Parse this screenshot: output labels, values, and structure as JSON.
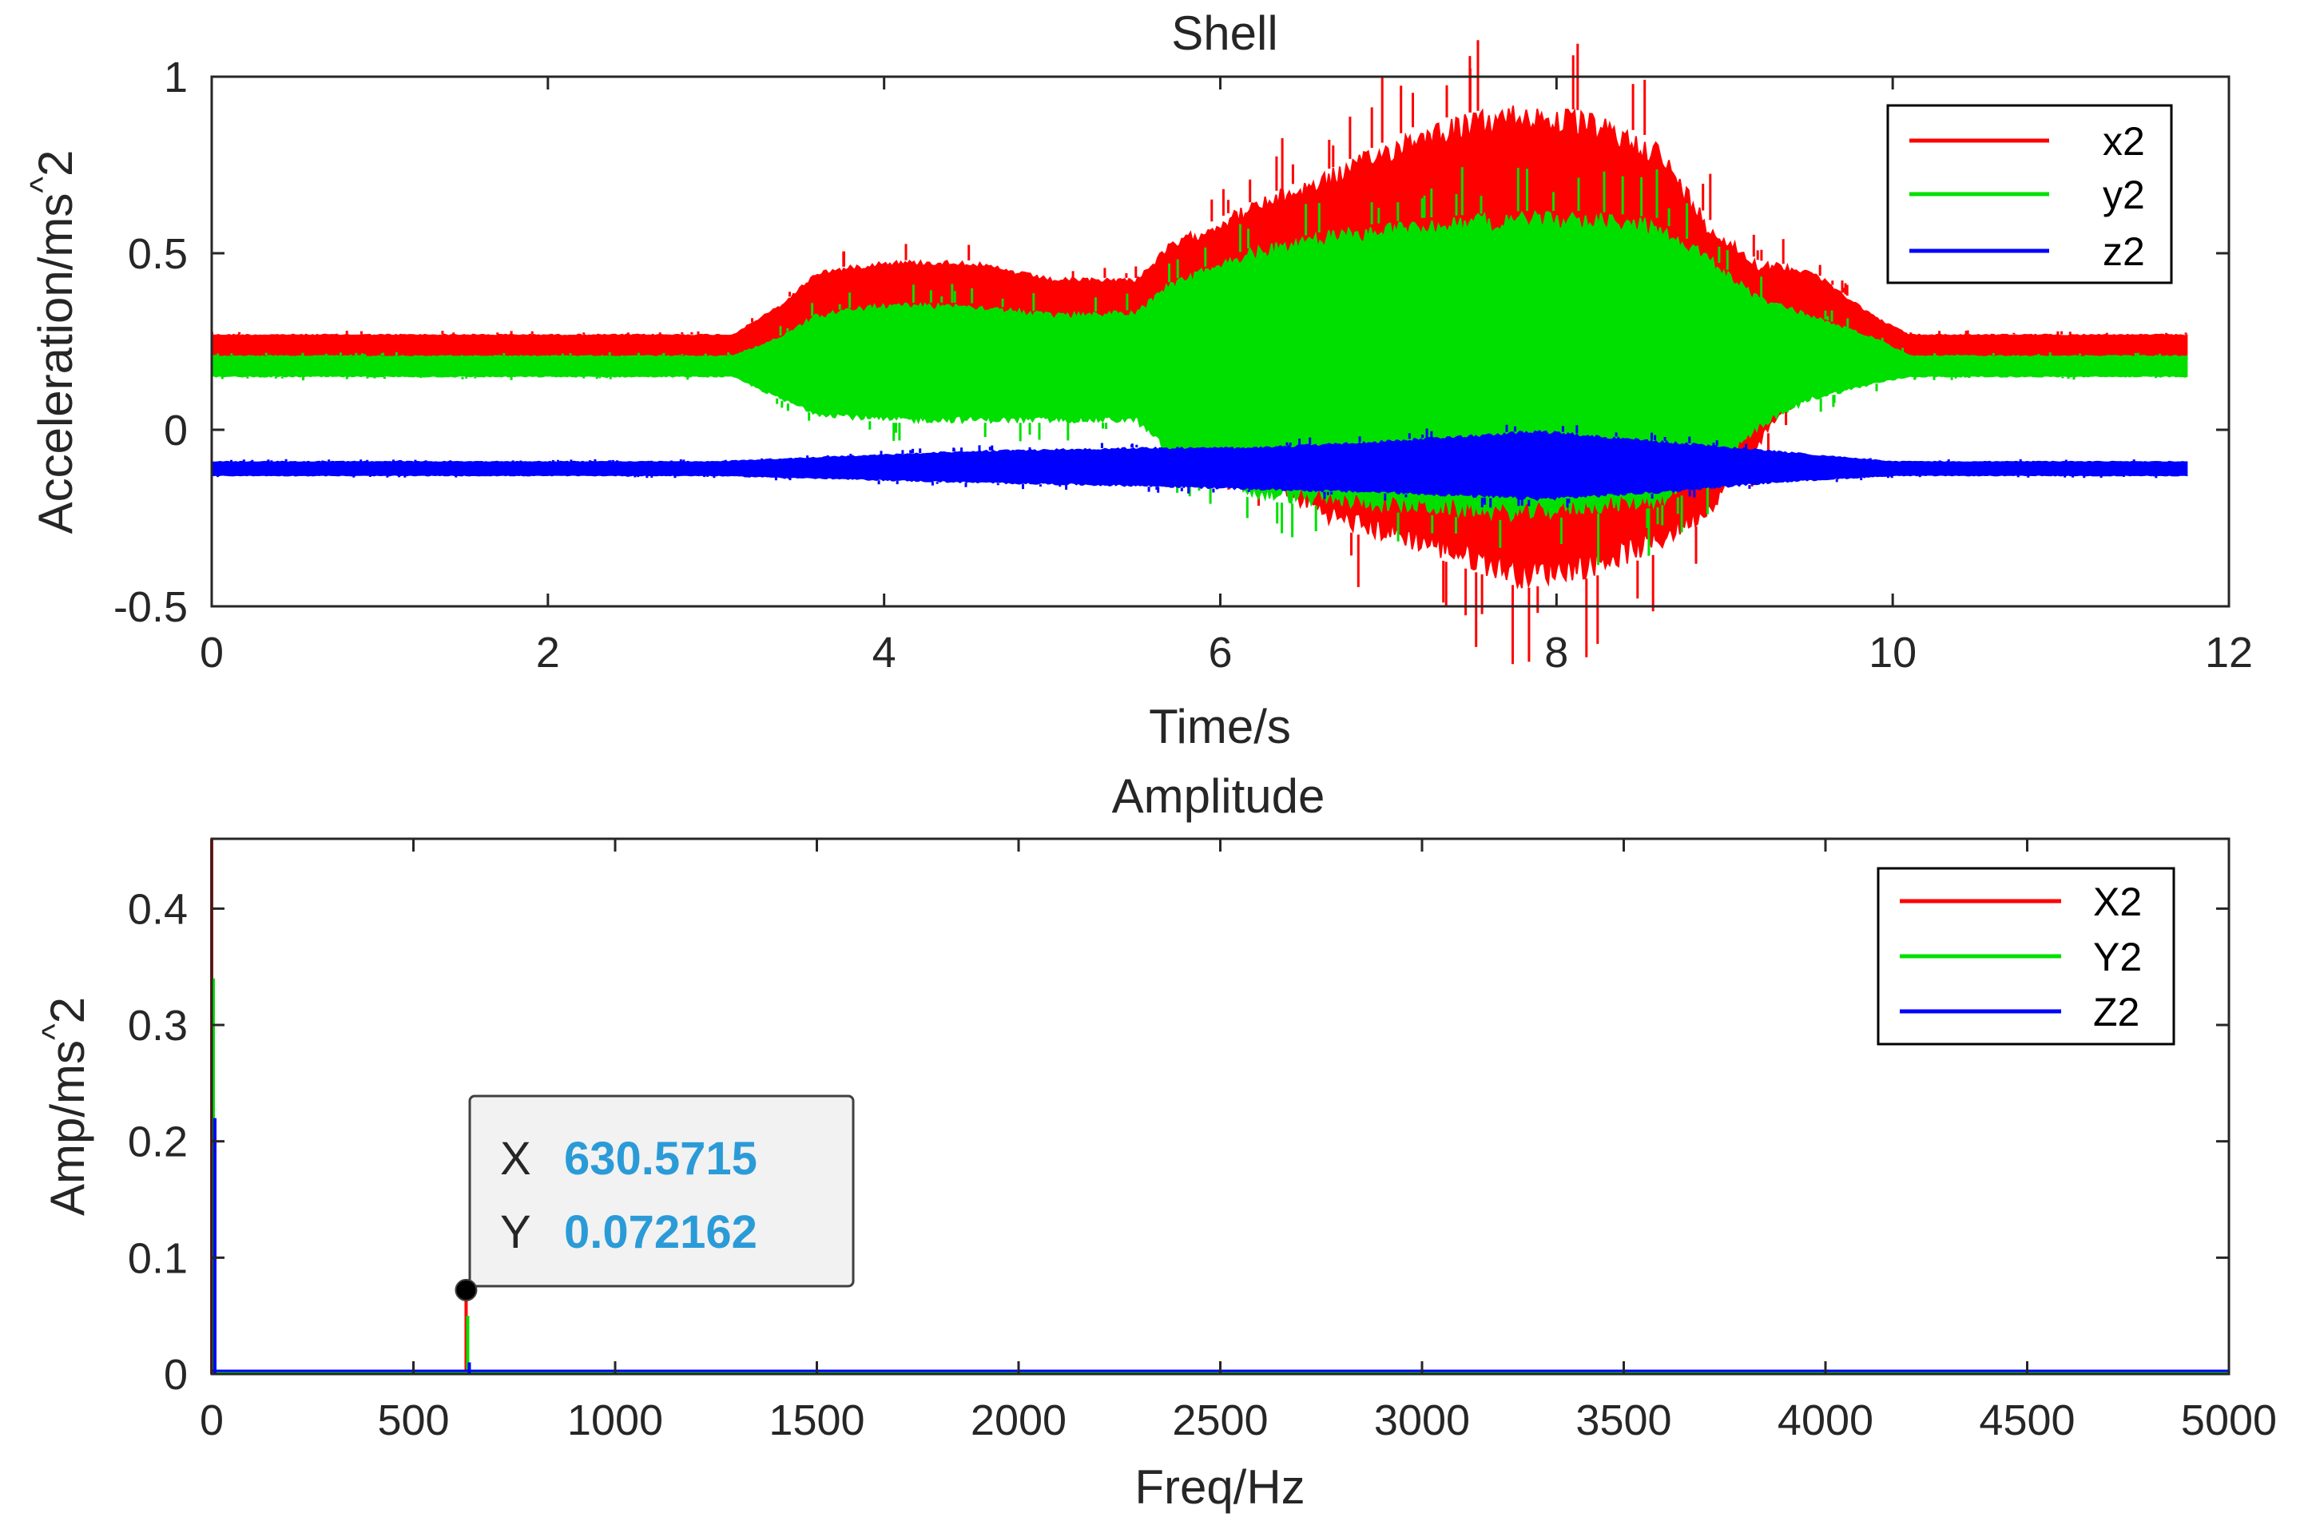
{
  "colors": {
    "x": "#ff0000",
    "y": "#00e000",
    "z": "#0000ff",
    "axis": "#262626",
    "datatip_value": "#2b9bd8"
  },
  "chart_data": [
    {
      "type": "line",
      "title": "Shell",
      "xlabel": "Time/s",
      "ylabel": "Acceleration/ms^2",
      "xlim": [
        0,
        12
      ],
      "ylim": [
        -0.5,
        1
      ],
      "xticks": [
        0,
        2,
        4,
        6,
        8,
        10,
        12
      ],
      "yticks": [
        -0.5,
        0,
        0.5,
        1
      ],
      "xtick_labels": [
        "0",
        "2",
        "4",
        "6",
        "8",
        "10",
        "12"
      ],
      "ytick_labels": [
        "-0.5",
        "0",
        "0.5",
        "1"
      ],
      "legend_position": "top-right",
      "series": [
        {
          "name": "x2",
          "color": "#ff0000",
          "envelope": {
            "t": [
              0,
              1,
              2,
              3.1,
              3.4,
              3.6,
              4.0,
              4.5,
              5.0,
              5.5,
              5.7,
              6.2,
              6.7,
              7.2,
              7.8,
              8.2,
              8.6,
              8.9,
              9.2,
              9.5,
              9.9,
              10.1,
              10.5,
              11,
              11.75
            ],
            "upper": [
              0.27,
              0.27,
              0.27,
              0.27,
              0.36,
              0.45,
              0.48,
              0.48,
              0.43,
              0.43,
              0.53,
              0.65,
              0.75,
              0.87,
              0.93,
              0.9,
              0.82,
              0.6,
              0.48,
              0.46,
              0.32,
              0.27,
              0.27,
              0.27,
              0.27
            ],
            "lower": [
              0.2,
              0.2,
              0.2,
              0.2,
              0.2,
              0.2,
              0.2,
              0.2,
              0.2,
              0.2,
              0.05,
              -0.15,
              -0.28,
              -0.35,
              -0.45,
              -0.42,
              -0.35,
              -0.25,
              -0.05,
              0.15,
              0.2,
              0.2,
              0.2,
              0.2,
              0.2
            ]
          }
        },
        {
          "name": "y2",
          "color": "#00e000",
          "envelope": {
            "t": [
              0,
              1,
              2,
              3.1,
              3.4,
              3.6,
              4.0,
              4.5,
              5.0,
              5.5,
              5.7,
              6.2,
              6.7,
              7.2,
              7.8,
              8.2,
              8.6,
              8.9,
              9.2,
              9.5,
              9.9,
              10.1,
              10.5,
              11,
              11.75
            ],
            "upper": [
              0.21,
              0.21,
              0.21,
              0.21,
              0.27,
              0.33,
              0.36,
              0.36,
              0.33,
              0.34,
              0.42,
              0.52,
              0.57,
              0.6,
              0.62,
              0.62,
              0.6,
              0.5,
              0.38,
              0.33,
              0.26,
              0.21,
              0.21,
              0.21,
              0.21
            ],
            "lower": [
              0.15,
              0.15,
              0.15,
              0.15,
              0.08,
              0.04,
              0.02,
              0.02,
              0.02,
              0.02,
              -0.08,
              -0.2,
              -0.22,
              -0.24,
              -0.26,
              -0.24,
              -0.22,
              -0.15,
              0.0,
              0.08,
              0.13,
              0.15,
              0.15,
              0.15,
              0.15
            ]
          }
        },
        {
          "name": "z2",
          "color": "#0000ff",
          "envelope": {
            "t": [
              0,
              1,
              2,
              3,
              4.5,
              5.5,
              6.2,
              7.0,
              7.9,
              8.6,
              9.3,
              10,
              11,
              11.75
            ],
            "upper": [
              -0.09,
              -0.09,
              -0.09,
              -0.09,
              -0.06,
              -0.05,
              -0.05,
              -0.03,
              0.0,
              -0.03,
              -0.06,
              -0.09,
              -0.09,
              -0.09
            ],
            "lower": [
              -0.13,
              -0.13,
              -0.13,
              -0.13,
              -0.15,
              -0.16,
              -0.17,
              -0.18,
              -0.2,
              -0.18,
              -0.15,
              -0.13,
              -0.13,
              -0.13
            ]
          }
        }
      ]
    },
    {
      "type": "line",
      "title": "Amplitude",
      "xlabel": "Freq/Hz",
      "ylabel": "Amp/ms^2",
      "xlim": [
        0,
        5000
      ],
      "ylim": [
        0,
        0.46
      ],
      "xticks": [
        0,
        500,
        1000,
        1500,
        2000,
        2500,
        3000,
        3500,
        4000,
        4500,
        5000
      ],
      "yticks": [
        0,
        0.1,
        0.2,
        0.3,
        0.4
      ],
      "xtick_labels": [
        "0",
        "500",
        "1000",
        "1500",
        "2000",
        "2500",
        "3000",
        "3500",
        "4000",
        "4500",
        "5000"
      ],
      "ytick_labels": [
        "0",
        "0.1",
        "0.2",
        "0.3",
        "0.4"
      ],
      "legend_position": "top-right",
      "series": [
        {
          "name": "X2",
          "color": "#ff0000",
          "x": [
            0,
            630.57
          ],
          "y": [
            0.46,
            0.072
          ]
        },
        {
          "name": "Y2",
          "color": "#00e000",
          "x": [
            0,
            630.57
          ],
          "y": [
            0.34,
            0.05
          ]
        },
        {
          "name": "Z2",
          "color": "#0000ff",
          "x": [
            0,
            630.57
          ],
          "y": [
            0.22,
            0.01
          ]
        }
      ],
      "datatip": {
        "x_label": "X",
        "y_label": "Y",
        "x_value": "630.5715",
        "y_value": "0.072162",
        "x": 630.5715,
        "y": 0.072162
      }
    }
  ]
}
